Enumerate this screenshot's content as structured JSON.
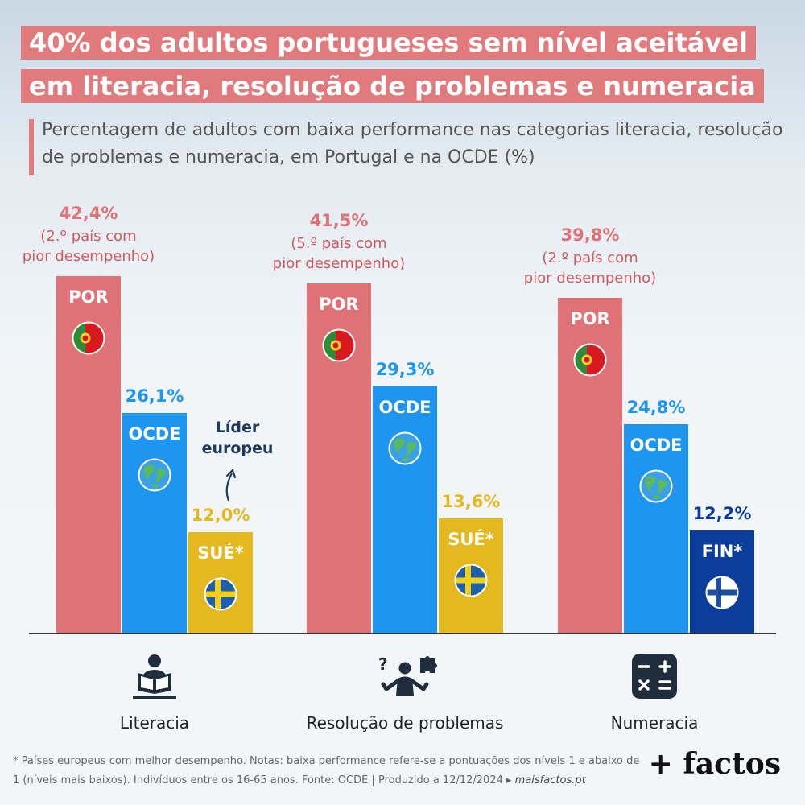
{
  "header": {
    "title_line1": "40% dos adultos portugueses sem nível aceitável",
    "title_line2": "em literacia, resolução de problemas e numeracia",
    "subtitle": "Percentagem de adultos com baixa performance nas categorias literacia, resolução de problemas e numeracia, em Portugal e na OCDE (%)"
  },
  "colors": {
    "title_bg": "#e07a7c",
    "portugal": "#de7276",
    "ocde": "#1e96f0",
    "sweden": "#e3b91f",
    "finland": "#0b3d9c",
    "note": "#d05a5d",
    "leader": "#1e3a5f"
  },
  "chart_data": {
    "type": "bar",
    "categories": [
      "Literacia",
      "Resolução de problemas",
      "Numeracia"
    ],
    "ylim": [
      0,
      50
    ],
    "groups": [
      {
        "category": "Literacia",
        "icon": "reading-person-icon",
        "bars": [
          {
            "code": "POR",
            "value": 42.4,
            "label": "42,4%",
            "color": "#de7276",
            "flag": "portugal",
            "note_lines": [
              "(2.º país com",
              "pior desempenho)"
            ]
          },
          {
            "code": "OCDE",
            "value": 26.1,
            "label": "26,1%",
            "color": "#1e96f0",
            "flag": "globe"
          },
          {
            "code": "SUÉ*",
            "value": 12.0,
            "label": "12,0%",
            "color": "#e3b91f",
            "flag": "sweden"
          }
        ]
      },
      {
        "category": "Resolução de problemas",
        "icon": "problem-solving-icon",
        "bars": [
          {
            "code": "POR",
            "value": 41.5,
            "label": "41,5%",
            "color": "#de7276",
            "flag": "portugal",
            "note_lines": [
              "(5.º país com",
              "pior desempenho)"
            ]
          },
          {
            "code": "OCDE",
            "value": 29.3,
            "label": "29,3%",
            "color": "#1e96f0",
            "flag": "globe"
          },
          {
            "code": "SUÉ*",
            "value": 13.6,
            "label": "13,6%",
            "color": "#e3b91f",
            "flag": "sweden"
          }
        ]
      },
      {
        "category": "Numeracia",
        "icon": "calculator-icon",
        "bars": [
          {
            "code": "POR",
            "value": 39.8,
            "label": "39,8%",
            "color": "#de7276",
            "flag": "portugal",
            "note_lines": [
              "(2.º país com",
              "pior desempenho)"
            ]
          },
          {
            "code": "OCDE",
            "value": 24.8,
            "label": "24,8%",
            "color": "#1e96f0",
            "flag": "globe"
          },
          {
            "code": "FIN*",
            "value": 12.2,
            "label": "12,2%",
            "color": "#0b3d9c",
            "flag": "finland"
          }
        ]
      }
    ],
    "annotation": {
      "lines": [
        "Líder",
        "europeu"
      ]
    }
  },
  "footer": {
    "notes": "* Países europeus com melhor desempenho. Notas: baixa performance refere-se a pontuações dos níveis 1 e abaixo de 1 (níveis mais baixos). Indivíduos entre os 16-65 anos. Fonte: OCDE | Produzido a 12/12/2024",
    "arrow": "▸",
    "site": "maisfactos.pt",
    "brand": "+ factos"
  }
}
